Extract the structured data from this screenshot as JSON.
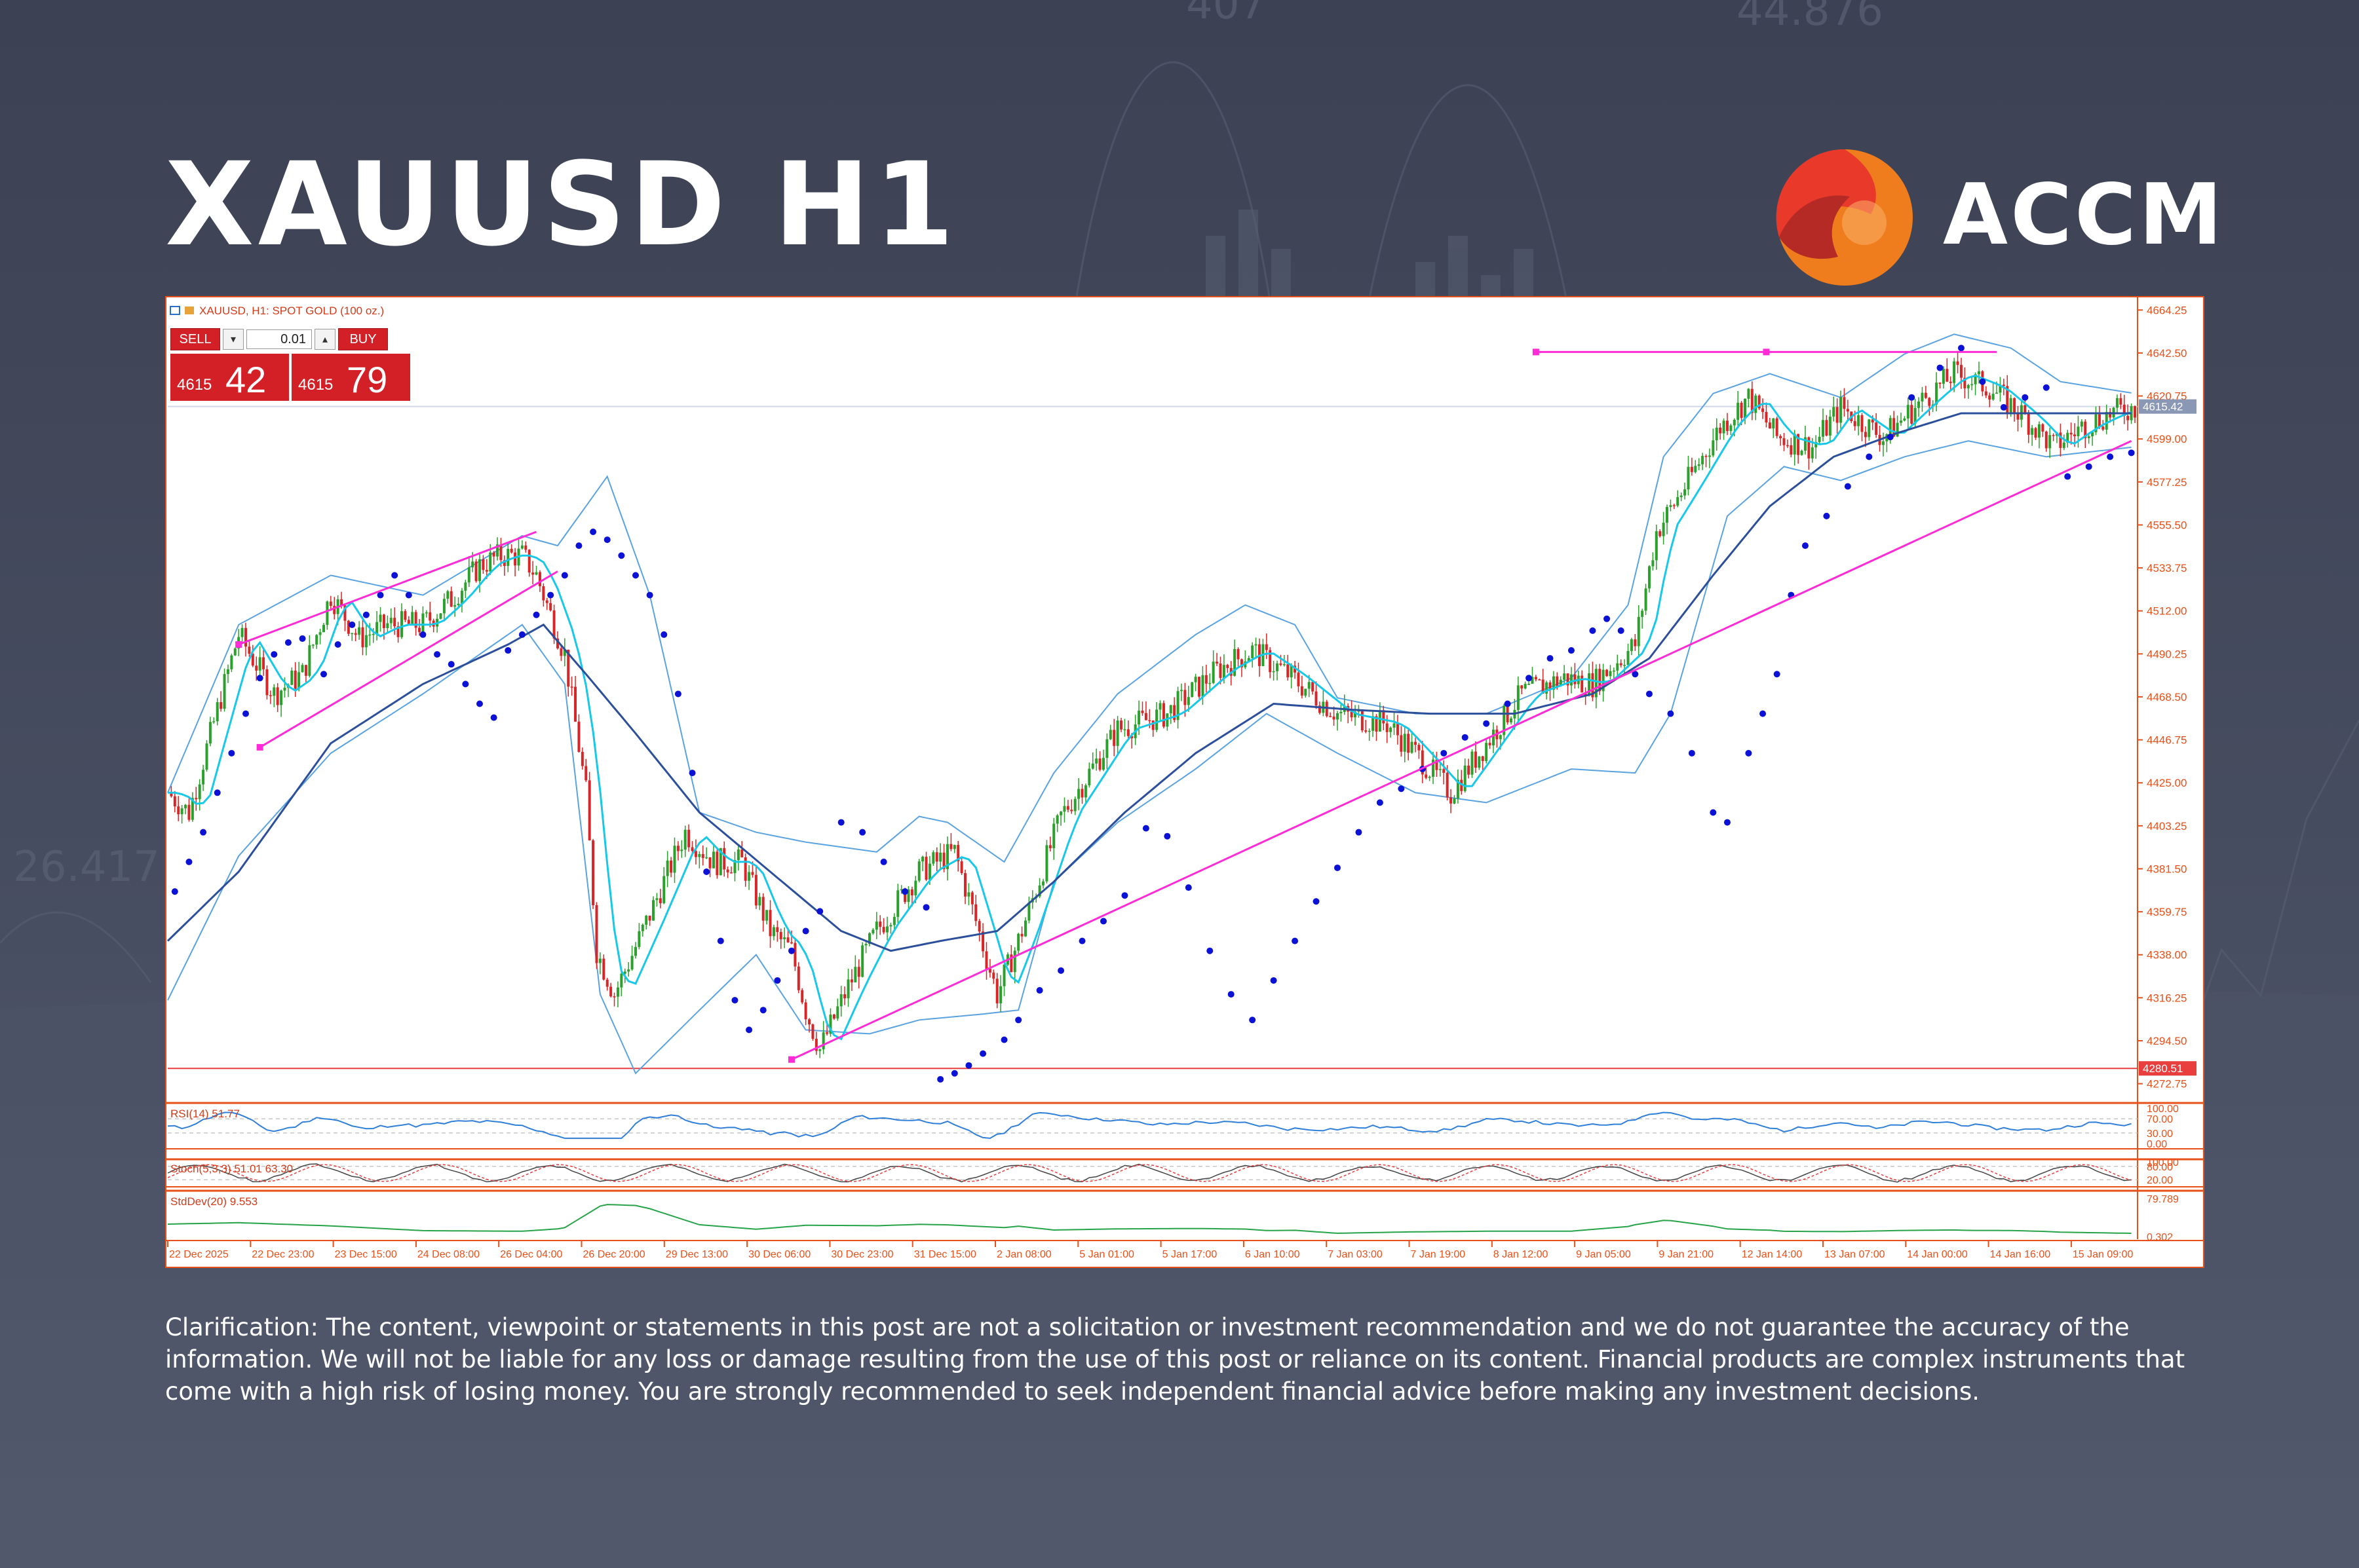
{
  "header": {
    "title": "XAUUSD H1",
    "brand_name": "ACCM",
    "brand_colors": {
      "orange": "#f07d1d",
      "red": "#e8392b",
      "dark_red": "#b52a25"
    }
  },
  "disclaimer": "Clarification: The content, viewpoint or statements in this post are not a solicitation or investment recommendation and we do not guarantee the accuracy of the information. We will not be liable for any loss or damage resulting from the use of this post or reliance on its content. Financial products are complex instruments that come with a high risk of losing money. You are strongly recommended to seek independent financial advice before making any investment decisions.",
  "trade_panel": {
    "sell_label": "SELL",
    "buy_label": "BUY",
    "lot": "0.01",
    "bid_prefix": "4615",
    "bid_big": "42",
    "ask_prefix": "4615",
    "ask_big": "79"
  },
  "chart_data": {
    "type": "candlestick",
    "title": "XAUUSD, H1:  SPOT GOLD (100 oz.)",
    "colors": {
      "up": "#2ca02c",
      "down": "#d62728",
      "ema_fast": "#18c8e8",
      "ema_slow": "#2b4f9a",
      "bollinger": "#5aa3e0",
      "psar": "#0b12d6",
      "trendline": "#ff2bd6",
      "axis": "#e8501a",
      "price_line": "#cfd6e8",
      "support_line": "#e83e3e",
      "stddev": "#27a348"
    },
    "ylim": [
      4265,
      4668
    ],
    "y_ticks": [
      "4664.25",
      "4642.50",
      "4620.75",
      "4599.00",
      "4577.25",
      "4555.50",
      "4533.75",
      "4512.00",
      "4490.25",
      "4468.50",
      "4446.75",
      "4425.00",
      "4403.25",
      "4381.50",
      "4359.75",
      "4338.00",
      "4316.25",
      "4294.50",
      "4272.75"
    ],
    "y_tick_values": [
      4664.25,
      4642.5,
      4620.75,
      4599.0,
      4577.25,
      4555.5,
      4533.75,
      4512.0,
      4490.25,
      4468.5,
      4446.75,
      4425.0,
      4403.25,
      4381.5,
      4359.75,
      4338.0,
      4316.25,
      4294.5,
      4272.75
    ],
    "current_price": {
      "label": "4615.42",
      "value": 4615.42
    },
    "support_level": {
      "label": "4280.51",
      "value": 4280.51
    },
    "x_labels": [
      "22 Dec 2025",
      "22 Dec 23:00",
      "23 Dec 15:00",
      "24 Dec 08:00",
      "26 Dec 04:00",
      "26 Dec 20:00",
      "29 Dec 13:00",
      "30 Dec 06:00",
      "30 Dec 23:00",
      "31 Dec 15:00",
      "2 Jan 08:00",
      "5 Jan 01:00",
      "5 Jan 17:00",
      "6 Jan 10:00",
      "7 Jan 03:00",
      "7 Jan 19:00",
      "8 Jan 12:00",
      "9 Jan 05:00",
      "9 Jan 21:00",
      "12 Jan 14:00",
      "13 Jan 07:00",
      "14 Jan 00:00",
      "14 Jan 16:00",
      "15 Jan 09:00"
    ],
    "close_path": [
      [
        0,
        4420
      ],
      [
        6,
        4410
      ],
      [
        14,
        4462
      ],
      [
        20,
        4500
      ],
      [
        30,
        4470
      ],
      [
        38,
        4480
      ],
      [
        46,
        4520
      ],
      [
        54,
        4498
      ],
      [
        62,
        4505
      ],
      [
        72,
        4505
      ],
      [
        80,
        4518
      ],
      [
        88,
        4535
      ],
      [
        94,
        4540
      ],
      [
        100,
        4540
      ],
      [
        104,
        4530
      ],
      [
        112,
        4490
      ],
      [
        118,
        4420
      ],
      [
        121,
        4340
      ],
      [
        126,
        4318
      ],
      [
        134,
        4350
      ],
      [
        146,
        4400
      ],
      [
        154,
        4385
      ],
      [
        162,
        4385
      ],
      [
        170,
        4350
      ],
      [
        176,
        4340
      ],
      [
        180,
        4310
      ],
      [
        184,
        4290
      ],
      [
        192,
        4322
      ],
      [
        200,
        4350
      ],
      [
        212,
        4380
      ],
      [
        222,
        4390
      ],
      [
        228,
        4355
      ],
      [
        234,
        4318
      ],
      [
        240,
        4345
      ],
      [
        252,
        4408
      ],
      [
        268,
        4452
      ],
      [
        282,
        4460
      ],
      [
        296,
        4482
      ],
      [
        306,
        4492
      ],
      [
        316,
        4480
      ],
      [
        330,
        4460
      ],
      [
        344,
        4455
      ],
      [
        352,
        4440
      ],
      [
        362,
        4420
      ],
      [
        370,
        4440
      ],
      [
        382,
        4470
      ],
      [
        394,
        4478
      ],
      [
        402,
        4475
      ],
      [
        414,
        4495
      ],
      [
        420,
        4552
      ],
      [
        428,
        4575
      ],
      [
        438,
        4605
      ],
      [
        446,
        4620
      ],
      [
        454,
        4600
      ],
      [
        464,
        4595
      ],
      [
        472,
        4615
      ],
      [
        484,
        4600
      ],
      [
        496,
        4620
      ],
      [
        504,
        4632
      ],
      [
        514,
        4625
      ],
      [
        524,
        4610
      ],
      [
        532,
        4595
      ],
      [
        540,
        4605
      ],
      [
        548,
        4612
      ],
      [
        555,
        4615
      ]
    ],
    "bands_upper": [
      [
        0,
        4420
      ],
      [
        20,
        4505
      ],
      [
        46,
        4530
      ],
      [
        72,
        4520
      ],
      [
        100,
        4550
      ],
      [
        110,
        4545
      ],
      [
        124,
        4580
      ],
      [
        136,
        4520
      ],
      [
        150,
        4410
      ],
      [
        166,
        4400
      ],
      [
        180,
        4395
      ],
      [
        200,
        4390
      ],
      [
        212,
        4408
      ],
      [
        220,
        4405
      ],
      [
        236,
        4385
      ],
      [
        250,
        4430
      ],
      [
        268,
        4470
      ],
      [
        290,
        4500
      ],
      [
        304,
        4515
      ],
      [
        318,
        4505
      ],
      [
        330,
        4468
      ],
      [
        352,
        4460
      ],
      [
        372,
        4460
      ],
      [
        396,
        4478
      ],
      [
        412,
        4515
      ],
      [
        422,
        4590
      ],
      [
        436,
        4622
      ],
      [
        452,
        4632
      ],
      [
        472,
        4620
      ],
      [
        490,
        4642
      ],
      [
        504,
        4652
      ],
      [
        520,
        4645
      ],
      [
        534,
        4628
      ],
      [
        555,
        4622
      ]
    ],
    "bands_lower": [
      [
        0,
        4315
      ],
      [
        20,
        4388
      ],
      [
        46,
        4440
      ],
      [
        72,
        4470
      ],
      [
        100,
        4505
      ],
      [
        112,
        4475
      ],
      [
        122,
        4318
      ],
      [
        132,
        4278
      ],
      [
        150,
        4310
      ],
      [
        166,
        4338
      ],
      [
        180,
        4300
      ],
      [
        198,
        4298
      ],
      [
        212,
        4305
      ],
      [
        230,
        4308
      ],
      [
        240,
        4310
      ],
      [
        250,
        4375
      ],
      [
        268,
        4405
      ],
      [
        290,
        4432
      ],
      [
        310,
        4460
      ],
      [
        330,
        4440
      ],
      [
        352,
        4420
      ],
      [
        372,
        4415
      ],
      [
        396,
        4432
      ],
      [
        414,
        4430
      ],
      [
        424,
        4460
      ],
      [
        440,
        4560
      ],
      [
        456,
        4585
      ],
      [
        472,
        4578
      ],
      [
        490,
        4590
      ],
      [
        508,
        4598
      ],
      [
        530,
        4590
      ],
      [
        555,
        4595
      ]
    ],
    "ema_slow": [
      [
        0,
        4345
      ],
      [
        20,
        4380
      ],
      [
        46,
        4445
      ],
      [
        72,
        4475
      ],
      [
        96,
        4495
      ],
      [
        106,
        4505
      ],
      [
        118,
        4480
      ],
      [
        132,
        4450
      ],
      [
        150,
        4410
      ],
      [
        170,
        4380
      ],
      [
        190,
        4350
      ],
      [
        204,
        4340
      ],
      [
        218,
        4345
      ],
      [
        234,
        4350
      ],
      [
        250,
        4375
      ],
      [
        270,
        4410
      ],
      [
        290,
        4440
      ],
      [
        312,
        4465
      ],
      [
        334,
        4462
      ],
      [
        356,
        4460
      ],
      [
        380,
        4460
      ],
      [
        402,
        4470
      ],
      [
        418,
        4488
      ],
      [
        436,
        4530
      ],
      [
        452,
        4565
      ],
      [
        470,
        4590
      ],
      [
        488,
        4602
      ],
      [
        506,
        4612
      ],
      [
        530,
        4612
      ],
      [
        555,
        4612
      ]
    ],
    "psar": [
      [
        2,
        4370
      ],
      [
        6,
        4385
      ],
      [
        10,
        4400
      ],
      [
        14,
        4420
      ],
      [
        18,
        4440
      ],
      [
        22,
        4460
      ],
      [
        26,
        4478
      ],
      [
        30,
        4490
      ],
      [
        34,
        4496
      ],
      [
        38,
        4498
      ],
      [
        44,
        4480
      ],
      [
        48,
        4495
      ],
      [
        52,
        4505
      ],
      [
        56,
        4510
      ],
      [
        60,
        4520
      ],
      [
        64,
        4530
      ],
      [
        68,
        4520
      ],
      [
        72,
        4500
      ],
      [
        76,
        4490
      ],
      [
        80,
        4485
      ],
      [
        84,
        4475
      ],
      [
        88,
        4465
      ],
      [
        92,
        4458
      ],
      [
        96,
        4492
      ],
      [
        100,
        4500
      ],
      [
        104,
        4510
      ],
      [
        108,
        4520
      ],
      [
        112,
        4530
      ],
      [
        116,
        4545
      ],
      [
        120,
        4552
      ],
      [
        124,
        4548
      ],
      [
        128,
        4540
      ],
      [
        132,
        4530
      ],
      [
        136,
        4520
      ],
      [
        140,
        4500
      ],
      [
        144,
        4470
      ],
      [
        148,
        4430
      ],
      [
        152,
        4380
      ],
      [
        156,
        4345
      ],
      [
        160,
        4315
      ],
      [
        164,
        4300
      ],
      [
        168,
        4310
      ],
      [
        172,
        4325
      ],
      [
        176,
        4340
      ],
      [
        180,
        4350
      ],
      [
        184,
        4360
      ],
      [
        190,
        4405
      ],
      [
        196,
        4400
      ],
      [
        202,
        4385
      ],
      [
        208,
        4370
      ],
      [
        214,
        4362
      ],
      [
        218,
        4275
      ],
      [
        222,
        4278
      ],
      [
        226,
        4282
      ],
      [
        230,
        4288
      ],
      [
        236,
        4295
      ],
      [
        240,
        4305
      ],
      [
        246,
        4320
      ],
      [
        252,
        4330
      ],
      [
        258,
        4345
      ],
      [
        264,
        4355
      ],
      [
        270,
        4368
      ],
      [
        276,
        4402
      ],
      [
        282,
        4398
      ],
      [
        288,
        4372
      ],
      [
        294,
        4340
      ],
      [
        300,
        4318
      ],
      [
        306,
        4305
      ],
      [
        312,
        4325
      ],
      [
        318,
        4345
      ],
      [
        324,
        4365
      ],
      [
        330,
        4382
      ],
      [
        336,
        4400
      ],
      [
        342,
        4415
      ],
      [
        348,
        4422
      ],
      [
        354,
        4432
      ],
      [
        360,
        4440
      ],
      [
        366,
        4448
      ],
      [
        372,
        4455
      ],
      [
        378,
        4465
      ],
      [
        384,
        4478
      ],
      [
        390,
        4488
      ],
      [
        396,
        4492
      ],
      [
        402,
        4502
      ],
      [
        406,
        4508
      ],
      [
        410,
        4502
      ],
      [
        414,
        4480
      ],
      [
        418,
        4470
      ],
      [
        424,
        4460
      ],
      [
        430,
        4440
      ],
      [
        436,
        4410
      ],
      [
        440,
        4405
      ],
      [
        446,
        4440
      ],
      [
        450,
        4460
      ],
      [
        454,
        4480
      ],
      [
        458,
        4520
      ],
      [
        462,
        4545
      ],
      [
        468,
        4560
      ],
      [
        474,
        4575
      ],
      [
        480,
        4590
      ],
      [
        486,
        4600
      ],
      [
        492,
        4620
      ],
      [
        500,
        4635
      ],
      [
        506,
        4645
      ],
      [
        512,
        4628
      ],
      [
        518,
        4615
      ],
      [
        524,
        4620
      ],
      [
        530,
        4625
      ],
      [
        536,
        4580
      ],
      [
        542,
        4585
      ],
      [
        548,
        4590
      ],
      [
        554,
        4592
      ]
    ],
    "trendlines": [
      {
        "from": [
          20,
          4495
        ],
        "to": [
          104,
          4552
        ]
      },
      {
        "from": [
          26,
          4443
        ],
        "to": [
          110,
          4532
        ]
      },
      {
        "from": [
          176,
          4285
        ],
        "to": [
          554,
          4598
        ]
      },
      {
        "from": [
          386,
          4643
        ],
        "to": [
          516,
          4643
        ]
      }
    ],
    "rsi": {
      "label": "RSI(14) 51.77",
      "period": 14,
      "value": 51.77,
      "ticks": [
        "100.00",
        "70.00",
        "30.00",
        "0.00"
      ],
      "tick_values": [
        100,
        70,
        30,
        0
      ]
    },
    "stochastic": {
      "label": "Stoch(5,3,3) 51.01 63.30",
      "k": 51.01,
      "d": 63.3,
      "ticks": [
        "100.00",
        "80.00",
        "20.00"
      ],
      "tick_values": [
        100,
        80,
        20
      ]
    },
    "stddev": {
      "label": "StdDev(20) 9.553",
      "period": 20,
      "value": 9.553,
      "ticks": [
        "79.789",
        "0.302"
      ],
      "tick_values": [
        79.789,
        0.302
      ]
    }
  }
}
